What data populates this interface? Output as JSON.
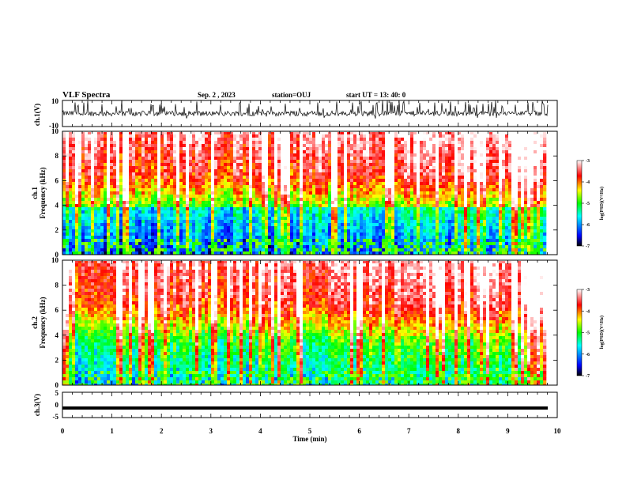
{
  "header": {
    "title": "VLF Spectra",
    "date": "Sep. 2 , 2023",
    "station": "station=OUJ",
    "start": "start UT = 13: 40: 0"
  },
  "chart_data": [
    {
      "type": "line",
      "id": "ch1-waveform",
      "ylabel": "ch.1(V)",
      "ylim": [
        -10,
        10
      ],
      "yticks": [
        "10",
        "-10"
      ],
      "xlim": [
        0,
        10
      ],
      "description_values": "noisy waveform, baseline about 0 V, spikes to about +10 V"
    },
    {
      "type": "heatmap",
      "id": "ch1-spectrogram",
      "ylabel": "ch.1",
      "ylabel2": "Frequency (kHz)",
      "ylim": [
        0,
        10
      ],
      "yticks": [
        "0",
        "2",
        "4",
        "6",
        "8",
        "10"
      ],
      "xlim": [
        0,
        9.8
      ],
      "colorbar": {
        "label": "log(PSD)(V²/Hz)",
        "range": [
          -7,
          -3
        ],
        "ticks": [
          "-3",
          "-4",
          "-5",
          "-6",
          "-7"
        ]
      }
    },
    {
      "type": "heatmap",
      "id": "ch2-spectrogram",
      "ylabel": "ch.2",
      "ylabel2": "Frequency (kHz)",
      "ylim": [
        0,
        10
      ],
      "yticks": [
        "0",
        "2",
        "4",
        "6",
        "8",
        "10"
      ],
      "xlim": [
        0,
        9.8
      ],
      "colorbar": {
        "label": "log(PSD)(V²/Hz)",
        "range": [
          -7,
          -3
        ],
        "ticks": [
          "-3",
          "-4",
          "-5",
          "-6",
          "-7"
        ]
      }
    },
    {
      "type": "line",
      "id": "ch3-waveform",
      "ylabel": "ch.3(V)",
      "ylim": [
        -5,
        5
      ],
      "yticks": [
        "5",
        "0",
        "-5"
      ],
      "values_constant": -1.2,
      "xlim": [
        0,
        10
      ]
    }
  ],
  "xaxis": {
    "label": "Time (min)",
    "ticks": [
      "0",
      "1",
      "2",
      "3",
      "4",
      "5",
      "6",
      "7",
      "8",
      "9",
      "10"
    ]
  },
  "colors": {
    "scale": [
      "#000000",
      "#0000ff",
      "#00ffff",
      "#00ff00",
      "#ffff00",
      "#ff0000",
      "#ffffff"
    ]
  }
}
